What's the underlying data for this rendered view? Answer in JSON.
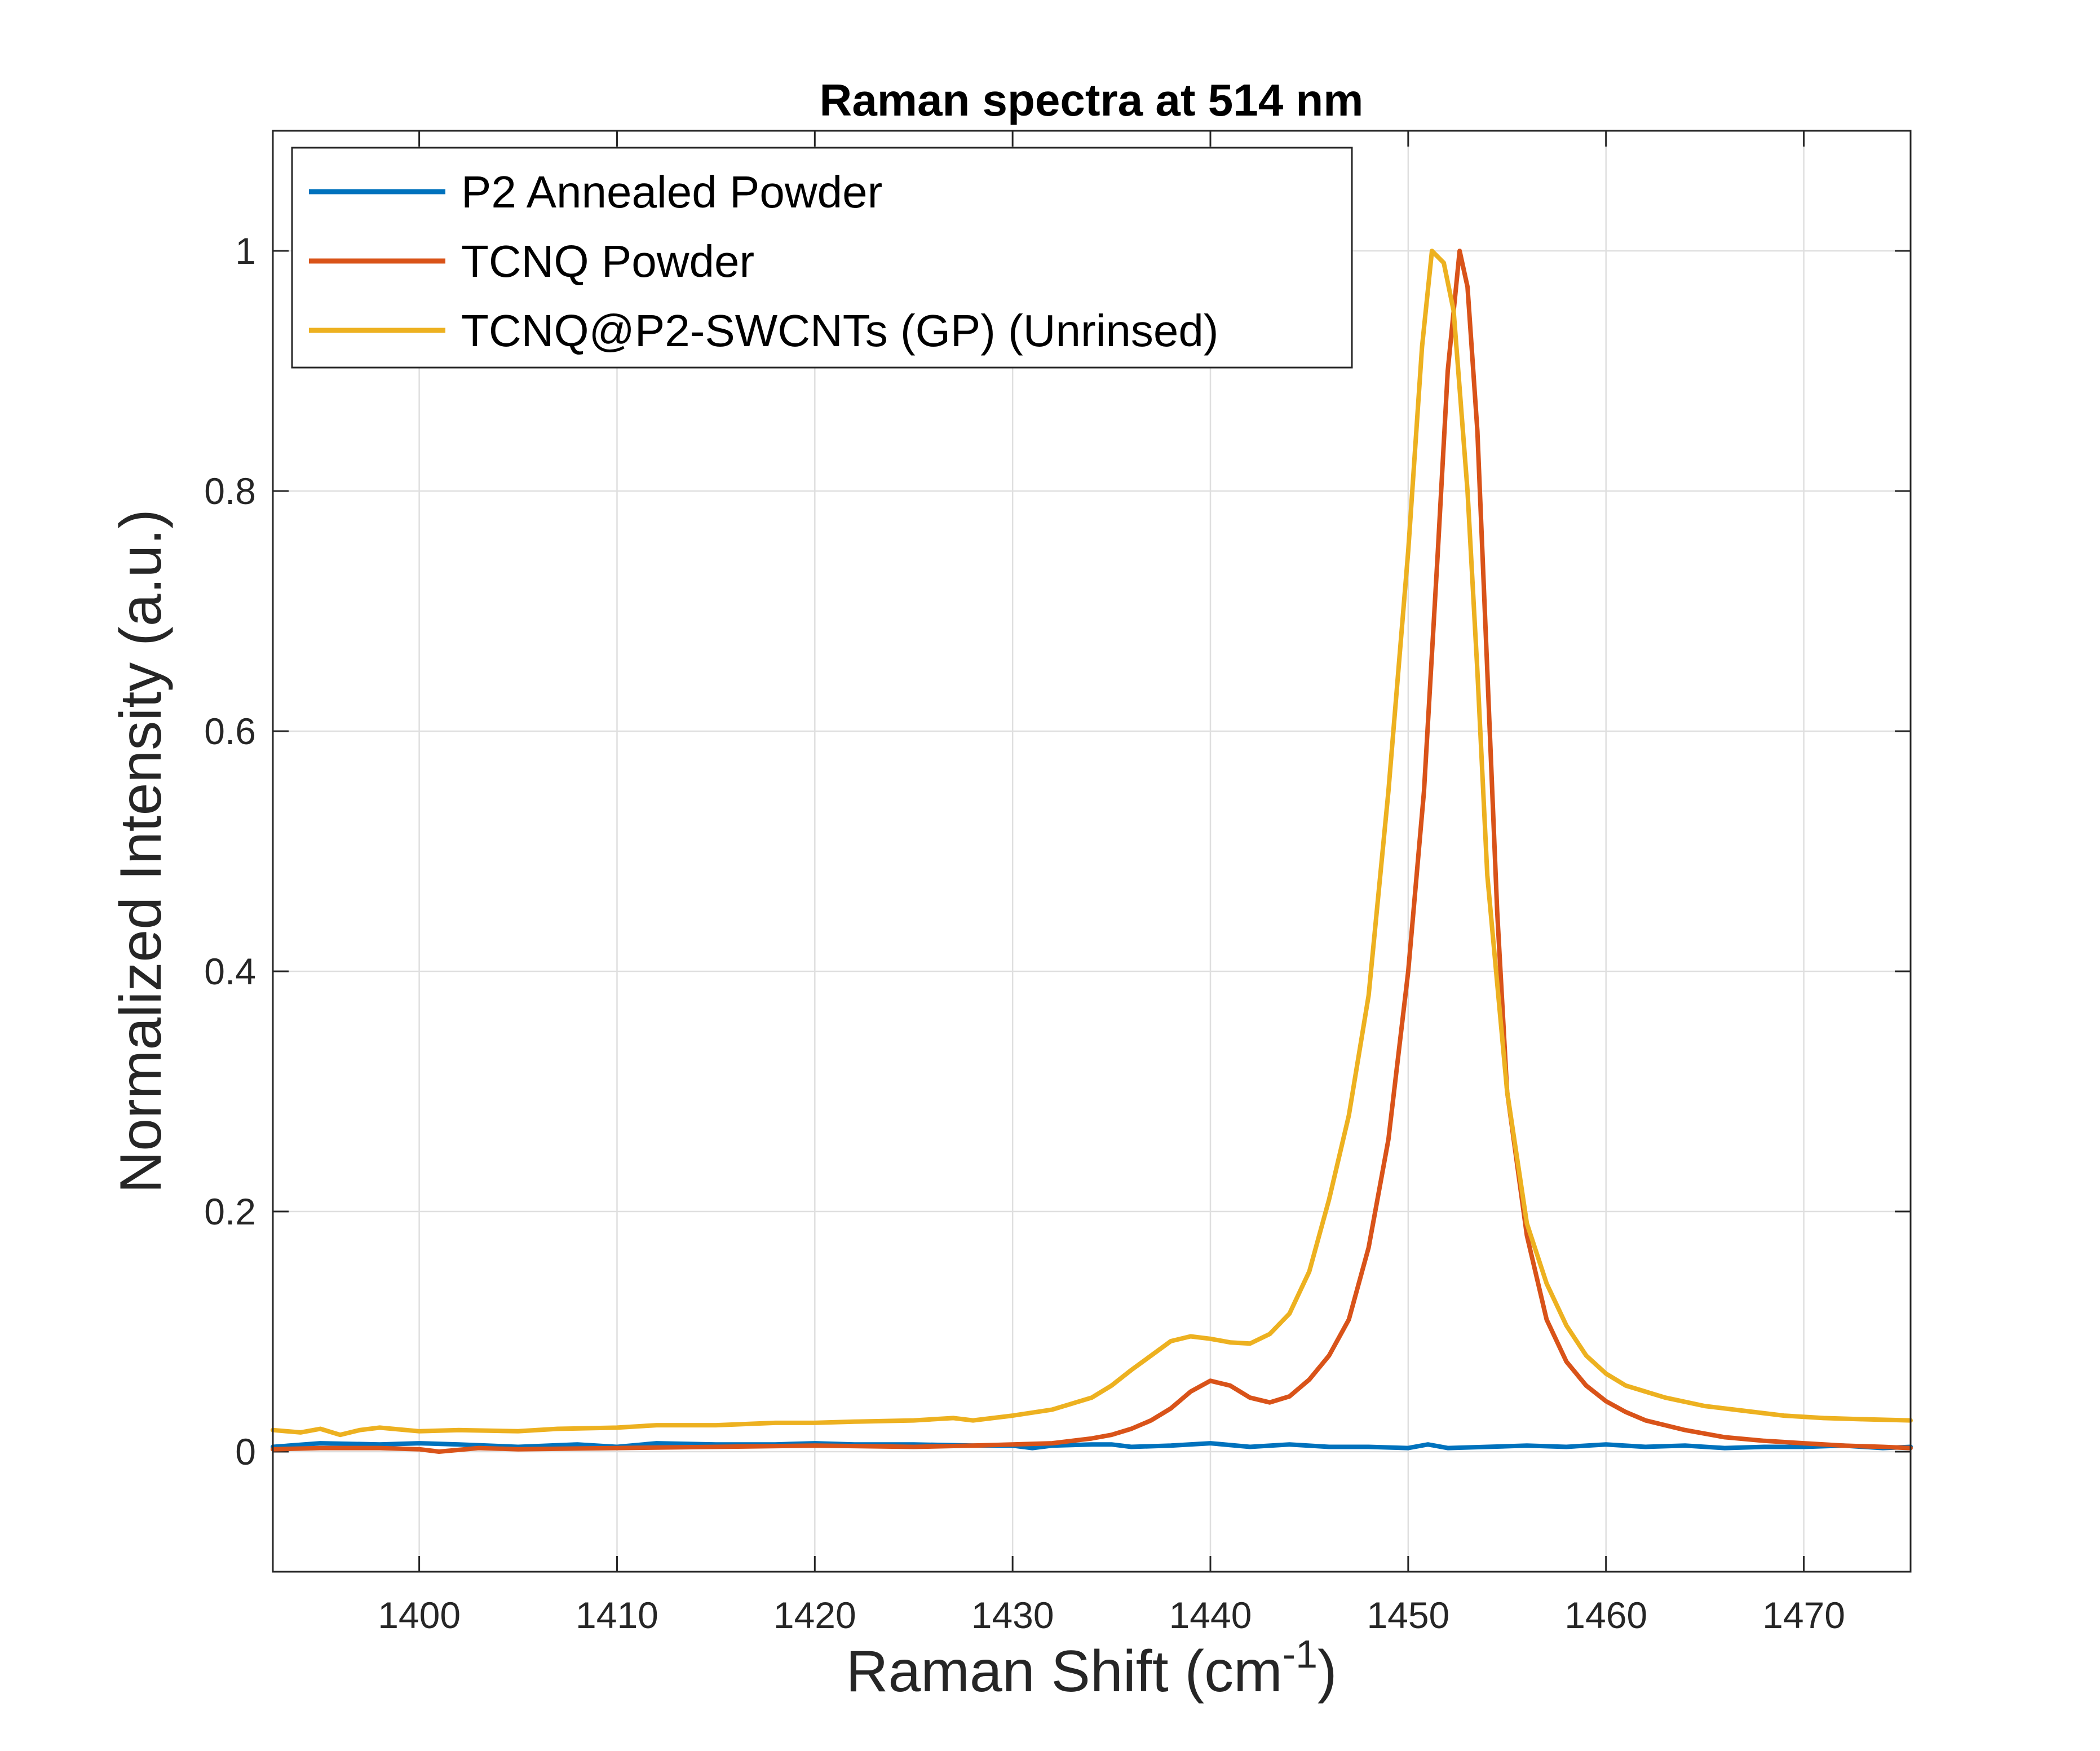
{
  "chart_data": {
    "type": "line",
    "title": "Raman spectra at 514 nm",
    "xlabel_main": "Raman Shift (cm",
    "xlabel_sup": "-1",
    "xlabel_end": ")",
    "ylabel": "Normalized Intensity (a.u.)",
    "xlim": [
      1392.6,
      1475.4
    ],
    "ylim": [
      -0.1,
      1.1
    ],
    "xticks": [
      1400,
      1410,
      1420,
      1430,
      1440,
      1450,
      1460,
      1470
    ],
    "xtick_labels": [
      "1400",
      "1410",
      "1420",
      "1430",
      "1440",
      "1450",
      "1460",
      "1470"
    ],
    "yticks": [
      0,
      0.2,
      0.4,
      0.6,
      0.8,
      1
    ],
    "ytick_labels": [
      "0",
      "0.2",
      "0.4",
      "0.6",
      "0.8",
      "1"
    ],
    "grid": true,
    "legend_position": "top-left",
    "series": [
      {
        "name": "P2 Annealed Powder",
        "color": "#0072BD",
        "points": [
          [
            1392.6,
            0.004
          ],
          [
            1395,
            0.007
          ],
          [
            1398,
            0.006
          ],
          [
            1400,
            0.007
          ],
          [
            1402,
            0.006
          ],
          [
            1405,
            0.004
          ],
          [
            1408,
            0.006
          ],
          [
            1410,
            0.004
          ],
          [
            1412,
            0.007
          ],
          [
            1415,
            0.006
          ],
          [
            1418,
            0.006
          ],
          [
            1420,
            0.007
          ],
          [
            1422,
            0.006
          ],
          [
            1425,
            0.006
          ],
          [
            1428,
            0.005
          ],
          [
            1430,
            0.005
          ],
          [
            1431,
            0.003
          ],
          [
            1432,
            0.005
          ],
          [
            1434,
            0.006
          ],
          [
            1435,
            0.006
          ],
          [
            1436,
            0.004
          ],
          [
            1438,
            0.005
          ],
          [
            1440,
            0.007
          ],
          [
            1442,
            0.004
          ],
          [
            1444,
            0.006
          ],
          [
            1446,
            0.004
          ],
          [
            1448,
            0.004
          ],
          [
            1450,
            0.003
          ],
          [
            1451,
            0.006
          ],
          [
            1452,
            0.003
          ],
          [
            1454,
            0.004
          ],
          [
            1456,
            0.005
          ],
          [
            1458,
            0.004
          ],
          [
            1460,
            0.006
          ],
          [
            1462,
            0.004
          ],
          [
            1464,
            0.005
          ],
          [
            1466,
            0.003
          ],
          [
            1468,
            0.004
          ],
          [
            1470,
            0.004
          ],
          [
            1472,
            0.005
          ],
          [
            1474,
            0.003
          ],
          [
            1475.4,
            0.004
          ]
        ]
      },
      {
        "name": "TCNQ Powder",
        "color": "#D95319",
        "points": [
          [
            1392.6,
            0.002
          ],
          [
            1395,
            0.003
          ],
          [
            1398,
            0.003
          ],
          [
            1400,
            0.002
          ],
          [
            1401,
            0.0
          ],
          [
            1403,
            0.003
          ],
          [
            1405,
            0.002
          ],
          [
            1410,
            0.003
          ],
          [
            1415,
            0.004
          ],
          [
            1420,
            0.005
          ],
          [
            1425,
            0.004
          ],
          [
            1428,
            0.005
          ],
          [
            1430,
            0.006
          ],
          [
            1432,
            0.007
          ],
          [
            1433,
            0.009
          ],
          [
            1434,
            0.011
          ],
          [
            1435,
            0.014
          ],
          [
            1436,
            0.019
          ],
          [
            1437,
            0.026
          ],
          [
            1438,
            0.036
          ],
          [
            1439,
            0.05
          ],
          [
            1440,
            0.059
          ],
          [
            1441,
            0.055
          ],
          [
            1442,
            0.045
          ],
          [
            1443,
            0.041
          ],
          [
            1444,
            0.046
          ],
          [
            1445,
            0.06
          ],
          [
            1446,
            0.08
          ],
          [
            1447,
            0.11
          ],
          [
            1448,
            0.17
          ],
          [
            1449,
            0.26
          ],
          [
            1450,
            0.4
          ],
          [
            1450.8,
            0.55
          ],
          [
            1451.5,
            0.75
          ],
          [
            1452,
            0.9
          ],
          [
            1452.6,
            1.0
          ],
          [
            1453,
            0.97
          ],
          [
            1453.5,
            0.85
          ],
          [
            1454,
            0.65
          ],
          [
            1454.5,
            0.45
          ],
          [
            1455,
            0.3
          ],
          [
            1456,
            0.18
          ],
          [
            1457,
            0.11
          ],
          [
            1458,
            0.075
          ],
          [
            1459,
            0.055
          ],
          [
            1460,
            0.042
          ],
          [
            1461,
            0.033
          ],
          [
            1462,
            0.026
          ],
          [
            1464,
            0.018
          ],
          [
            1466,
            0.012
          ],
          [
            1468,
            0.009
          ],
          [
            1470,
            0.007
          ],
          [
            1472,
            0.005
          ],
          [
            1474,
            0.004
          ],
          [
            1475.4,
            0.003
          ]
        ]
      },
      {
        "name": "TCNQ@P2-SWCNTs (GP) (Unrinsed)",
        "color": "#EDB120",
        "points": [
          [
            1392.6,
            0.018
          ],
          [
            1394,
            0.016
          ],
          [
            1395,
            0.019
          ],
          [
            1396,
            0.014
          ],
          [
            1397,
            0.018
          ],
          [
            1398,
            0.02
          ],
          [
            1400,
            0.017
          ],
          [
            1402,
            0.018
          ],
          [
            1405,
            0.017
          ],
          [
            1407,
            0.019
          ],
          [
            1410,
            0.02
          ],
          [
            1412,
            0.022
          ],
          [
            1415,
            0.022
          ],
          [
            1418,
            0.024
          ],
          [
            1420,
            0.024
          ],
          [
            1422,
            0.025
          ],
          [
            1425,
            0.026
          ],
          [
            1427,
            0.028
          ],
          [
            1428,
            0.026
          ],
          [
            1430,
            0.03
          ],
          [
            1432,
            0.035
          ],
          [
            1434,
            0.045
          ],
          [
            1435,
            0.055
          ],
          [
            1436,
            0.068
          ],
          [
            1437,
            0.08
          ],
          [
            1438,
            0.092
          ],
          [
            1439,
            0.096
          ],
          [
            1440,
            0.094
          ],
          [
            1441,
            0.091
          ],
          [
            1442,
            0.09
          ],
          [
            1443,
            0.098
          ],
          [
            1444,
            0.115
          ],
          [
            1445,
            0.15
          ],
          [
            1446,
            0.21
          ],
          [
            1447,
            0.28
          ],
          [
            1448,
            0.38
          ],
          [
            1449,
            0.55
          ],
          [
            1450,
            0.75
          ],
          [
            1450.7,
            0.92
          ],
          [
            1451.2,
            1.0
          ],
          [
            1451.8,
            0.99
          ],
          [
            1452.3,
            0.95
          ],
          [
            1453,
            0.8
          ],
          [
            1453.5,
            0.65
          ],
          [
            1454,
            0.48
          ],
          [
            1455,
            0.3
          ],
          [
            1456,
            0.19
          ],
          [
            1457,
            0.14
          ],
          [
            1458,
            0.105
          ],
          [
            1459,
            0.08
          ],
          [
            1460,
            0.065
          ],
          [
            1461,
            0.055
          ],
          [
            1462,
            0.05
          ],
          [
            1463,
            0.045
          ],
          [
            1465,
            0.038
          ],
          [
            1467,
            0.034
          ],
          [
            1469,
            0.03
          ],
          [
            1471,
            0.028
          ],
          [
            1473,
            0.027
          ],
          [
            1475.4,
            0.026
          ]
        ]
      }
    ]
  }
}
